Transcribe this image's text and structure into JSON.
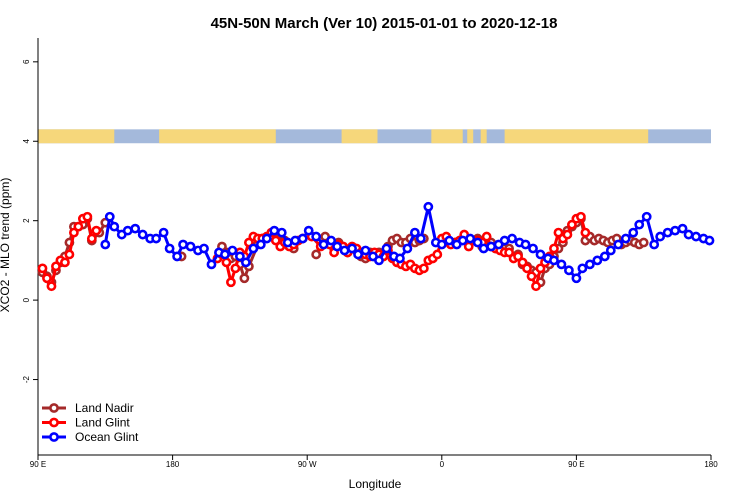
{
  "chart_data": {
    "type": "line",
    "title": "45N-50N March (Ver 10)   2015-01-01 to 2020-12-18",
    "xlabel": "Longitude",
    "ylabel": "XCO2 - MLO trend (ppm)",
    "x_axis_units": "longitude degrees, continuous (0-360 repeated span shown)",
    "xlim": [
      90,
      540
    ],
    "ylim": [
      -3.9,
      6.6
    ],
    "x_ticks": [
      {
        "value": 90,
        "label": "90 E"
      },
      {
        "value": 180,
        "label": "180"
      },
      {
        "value": 270,
        "label": "90 W"
      },
      {
        "value": 360,
        "label": "0"
      },
      {
        "value": 450,
        "label": "90 E"
      },
      {
        "value": 540,
        "label": "180"
      }
    ],
    "y_ticks": [
      {
        "value": -2,
        "label": "-2"
      },
      {
        "value": 0,
        "label": "0"
      },
      {
        "value": 2,
        "label": "2"
      },
      {
        "value": 4,
        "label": "4"
      },
      {
        "value": 6,
        "label": "6"
      }
    ],
    "grid": false,
    "legend_position": "bottom-left",
    "land_ocean_strip": {
      "y_range": [
        3.95,
        4.3
      ],
      "land_color": "#f6d77b",
      "ocean_color": "#a4b9db",
      "land_spans": [
        [
          90,
          141
        ],
        [
          171,
          249
        ],
        [
          293,
          317
        ],
        [
          353,
          374
        ],
        [
          377,
          381
        ],
        [
          386,
          390
        ],
        [
          402,
          498
        ]
      ]
    },
    "series": [
      {
        "name": "Land Nadir",
        "color": "#a52a2a",
        "x": [
          93,
          96,
          99,
          102,
          105,
          108,
          111,
          114,
          117,
          120,
          123,
          126,
          131,
          135,
          186,
          213,
          216,
          219,
          222,
          225,
          228,
          231,
          237,
          240,
          246,
          249,
          252,
          255,
          258,
          261,
          276,
          282,
          285,
          288,
          291,
          294,
          297,
          300,
          303,
          306,
          309,
          312,
          315,
          318,
          321,
          324,
          327,
          330,
          333,
          336,
          339,
          342,
          345,
          348,
          363,
          369,
          372,
          375,
          378,
          381,
          384,
          387,
          390,
          393,
          396,
          399,
          402,
          405,
          408,
          411,
          414,
          417,
          420,
          423,
          426,
          429,
          432,
          435,
          438,
          441,
          444,
          447,
          450,
          453,
          456,
          459,
          462,
          465,
          468,
          471,
          474,
          477,
          480,
          483,
          486,
          489,
          492,
          495
        ],
        "y": [
          0.7,
          0.6,
          0.45,
          0.75,
          0.95,
          1.1,
          1.45,
          1.85,
          1.85,
          1.9,
          2.05,
          1.5,
          1.7,
          1.95,
          1.1,
          1.35,
          1.2,
          1.05,
          1.1,
          0.9,
          0.55,
          0.85,
          1.4,
          1.55,
          1.6,
          1.7,
          1.65,
          1.5,
          1.4,
          1.3,
          1.15,
          1.6,
          1.45,
          1.3,
          1.45,
          1.35,
          1.2,
          1.3,
          1.25,
          1.1,
          1.05,
          1.2,
          1.1,
          1.2,
          1.1,
          1.35,
          1.5,
          1.55,
          1.45,
          1.45,
          1.55,
          1.45,
          1.5,
          1.55,
          1.5,
          1.45,
          1.5,
          1.55,
          1.45,
          1.5,
          1.55,
          1.35,
          1.4,
          1.45,
          1.3,
          1.35,
          1.3,
          1.3,
          1.1,
          1.15,
          0.9,
          0.85,
          0.75,
          0.7,
          0.45,
          0.8,
          0.9,
          1.1,
          1.3,
          1.45,
          1.75,
          1.85,
          1.95,
          2.05,
          1.5,
          1.6,
          1.5,
          1.55,
          1.5,
          1.45,
          1.5,
          1.55,
          1.4,
          1.45,
          1.5,
          1.45,
          1.4,
          1.45
        ]
      },
      {
        "name": "Land Glint",
        "color": "#ff0000",
        "x": [
          93,
          96,
          99,
          102,
          105,
          108,
          111,
          114,
          117,
          120,
          123,
          126,
          129,
          210,
          213,
          216,
          219,
          222,
          225,
          228,
          231,
          234,
          237,
          240,
          243,
          246,
          249,
          252,
          255,
          258,
          261,
          264,
          267,
          273,
          279,
          285,
          288,
          291,
          294,
          297,
          300,
          303,
          306,
          309,
          312,
          315,
          318,
          321,
          324,
          327,
          330,
          333,
          336,
          339,
          342,
          345,
          348,
          351,
          354,
          357,
          360,
          363,
          366,
          369,
          372,
          375,
          378,
          381,
          384,
          387,
          390,
          393,
          396,
          399,
          402,
          405,
          408,
          411,
          414,
          417,
          420,
          423,
          426,
          429,
          432,
          435,
          438,
          441,
          444,
          447,
          450,
          453,
          456
        ],
        "y": [
          0.8,
          0.55,
          0.35,
          0.85,
          1.0,
          0.95,
          1.15,
          1.7,
          1.85,
          2.05,
          2.1,
          1.55,
          1.75,
          1.05,
          1.15,
          0.95,
          0.45,
          0.8,
          1.2,
          1.1,
          1.45,
          1.6,
          1.55,
          1.55,
          1.6,
          1.7,
          1.5,
          1.35,
          1.45,
          1.35,
          1.4,
          1.5,
          1.55,
          1.6,
          1.35,
          1.4,
          1.2,
          1.4,
          1.35,
          1.2,
          1.35,
          1.3,
          1.2,
          1.15,
          1.1,
          1.2,
          1.15,
          1.1,
          1.25,
          1.05,
          0.95,
          0.9,
          0.85,
          0.9,
          0.8,
          0.75,
          0.8,
          1.0,
          1.05,
          1.15,
          1.55,
          1.6,
          1.4,
          1.45,
          1.5,
          1.65,
          1.35,
          1.5,
          1.5,
          1.45,
          1.6,
          1.35,
          1.3,
          1.25,
          1.2,
          1.2,
          1.05,
          1.1,
          0.95,
          0.8,
          0.6,
          0.35,
          0.8,
          0.95,
          1.1,
          1.3,
          1.7,
          1.55,
          1.65,
          1.9,
          2.05,
          2.1,
          1.7
        ]
      },
      {
        "name": "Ocean Glint",
        "color": "#0000ff",
        "x": [
          135,
          138,
          141,
          146,
          150,
          155,
          160,
          165,
          169,
          174,
          178,
          183,
          187,
          192,
          197,
          201,
          206,
          211,
          215,
          220,
          225,
          229,
          234,
          239,
          243,
          248,
          253,
          257,
          262,
          267,
          271,
          276,
          281,
          286,
          290,
          295,
          300,
          304,
          309,
          314,
          318,
          323,
          328,
          332,
          337,
          342,
          346,
          351,
          356,
          360,
          365,
          370,
          374,
          379,
          384,
          388,
          393,
          398,
          402,
          407,
          412,
          416,
          421,
          426,
          431,
          435,
          440,
          445,
          450,
          454,
          459,
          464,
          469,
          473,
          478,
          483,
          488,
          492,
          497,
          502,
          506,
          511,
          516,
          521,
          525,
          530,
          535,
          539
        ],
        "y": [
          1.4,
          2.1,
          1.85,
          1.65,
          1.75,
          1.8,
          1.65,
          1.55,
          1.55,
          1.7,
          1.3,
          1.1,
          1.4,
          1.35,
          1.25,
          1.3,
          0.9,
          1.2,
          1.15,
          1.25,
          1.1,
          0.95,
          1.3,
          1.4,
          1.55,
          1.75,
          1.7,
          1.45,
          1.5,
          1.55,
          1.75,
          1.6,
          1.4,
          1.5,
          1.35,
          1.25,
          1.3,
          1.15,
          1.25,
          1.1,
          1.0,
          1.3,
          1.1,
          1.05,
          1.3,
          1.7,
          1.55,
          2.35,
          1.45,
          1.4,
          1.5,
          1.4,
          1.5,
          1.55,
          1.45,
          1.3,
          1.35,
          1.4,
          1.5,
          1.55,
          1.45,
          1.4,
          1.3,
          1.15,
          1.05,
          1.0,
          0.9,
          0.75,
          0.55,
          0.8,
          0.9,
          1.0,
          1.1,
          1.25,
          1.4,
          1.55,
          1.7,
          1.9,
          2.1,
          1.4,
          1.6,
          1.7,
          1.75,
          1.8,
          1.65,
          1.6,
          1.55,
          1.5
        ]
      }
    ],
    "legend": [
      {
        "name": "Land Nadir",
        "color": "#a52a2a"
      },
      {
        "name": "Land Glint",
        "color": "#ff0000"
      },
      {
        "name": "Ocean Glint",
        "color": "#0000ff"
      }
    ]
  }
}
